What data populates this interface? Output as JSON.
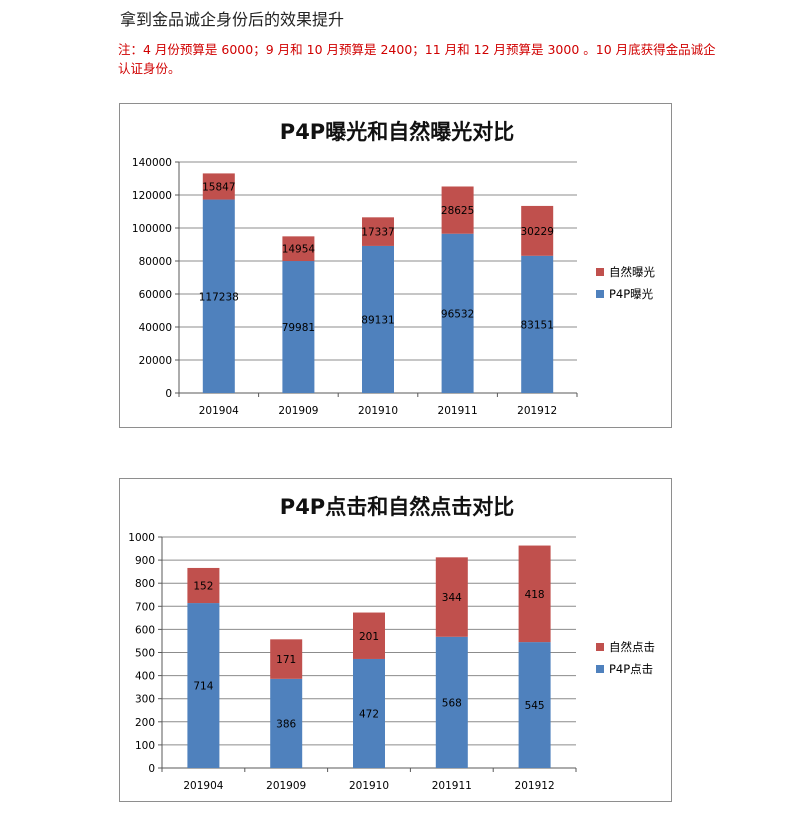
{
  "page": {
    "heading": "拿到金品诚企身份后的效果提升",
    "note": "注：4 月份预算是 6000；9 月和 10 月预算是 2400；11 月和 12 月预算是 3000 。10 月底获得金品诚企认证身份。"
  },
  "colors": {
    "p4p": "#4f81bd",
    "natural": "#c0504d",
    "grid": "#8c8c8c",
    "axis": "#595959"
  },
  "chart_data": [
    {
      "type": "bar",
      "stacked": true,
      "title": "P4P曝光和自然曝光对比",
      "xlabel": "",
      "ylabel": "",
      "categories": [
        "201904",
        "201909",
        "201910",
        "201911",
        "201912"
      ],
      "ylim": [
        0,
        140000
      ],
      "ytick_step": 20000,
      "yticks": [
        "0",
        "20000",
        "40000",
        "60000",
        "80000",
        "100000",
        "120000",
        "140000"
      ],
      "grid": true,
      "legend_position": "right",
      "series": [
        {
          "name": "P4P曝光",
          "color": "#4f81bd",
          "values": [
            117238,
            79981,
            89131,
            96532,
            83151
          ]
        },
        {
          "name": "自然曝光",
          "color": "#c0504d",
          "values": [
            15847,
            14954,
            17337,
            28625,
            30229
          ]
        }
      ]
    },
    {
      "type": "bar",
      "stacked": true,
      "title": "P4P点击和自然点击对比",
      "xlabel": "",
      "ylabel": "",
      "categories": [
        "201904",
        "201909",
        "201910",
        "201911",
        "201912"
      ],
      "ylim": [
        0,
        1000
      ],
      "ytick_step": 100,
      "yticks": [
        "0",
        "100",
        "200",
        "300",
        "400",
        "500",
        "600",
        "700",
        "800",
        "900",
        "1000"
      ],
      "grid": true,
      "legend_position": "right",
      "series": [
        {
          "name": "P4P点击",
          "color": "#4f81bd",
          "values": [
            714,
            386,
            472,
            568,
            545
          ]
        },
        {
          "name": "自然点击",
          "color": "#c0504d",
          "values": [
            152,
            171,
            201,
            344,
            418
          ]
        }
      ]
    }
  ]
}
